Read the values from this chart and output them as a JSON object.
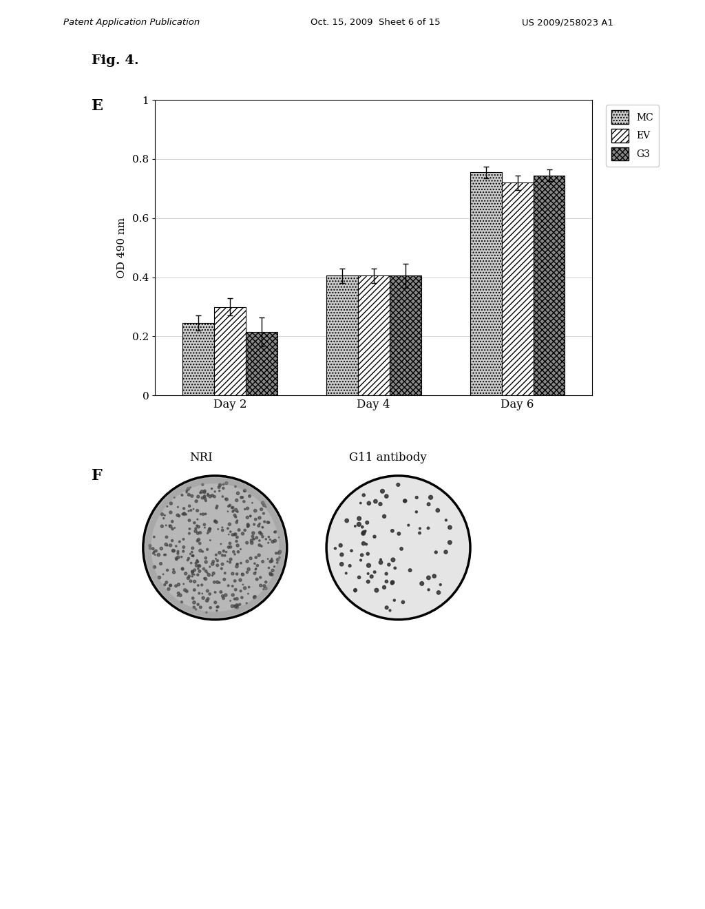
{
  "header_left": "Patent Application Publication",
  "header_mid": "Oct. 15, 2009  Sheet 6 of 15",
  "header_right": "US 2009/258023 A1",
  "fig_label": "Fig. 4.",
  "panel_E_label": "E",
  "panel_F_label": "F",
  "categories": [
    "Day 2",
    "Day 4",
    "Day 6"
  ],
  "series_keys": [
    "MC",
    "EV",
    "G3"
  ],
  "series": {
    "MC": {
      "values": [
        0.245,
        0.405,
        0.755
      ],
      "errors": [
        0.025,
        0.025,
        0.02
      ],
      "hatch": "....",
      "facecolor": "#cccccc",
      "edgecolor": "#000000",
      "label": "MC"
    },
    "EV": {
      "values": [
        0.3,
        0.405,
        0.72
      ],
      "errors": [
        0.03,
        0.025,
        0.025
      ],
      "hatch": "////",
      "facecolor": "#ffffff",
      "edgecolor": "#000000",
      "label": "EV"
    },
    "G3": {
      "values": [
        0.215,
        0.405,
        0.745
      ],
      "errors": [
        0.05,
        0.04,
        0.02
      ],
      "hatch": "xxxx",
      "facecolor": "#888888",
      "edgecolor": "#000000",
      "label": "G3"
    }
  },
  "ylabel": "OD 490 nm",
  "ylim": [
    0,
    1.0
  ],
  "yticks": [
    0,
    0.2,
    0.4,
    0.6,
    0.8,
    1
  ],
  "bar_width": 0.22,
  "nri_label": "NRI",
  "g11_label": "G11 antibody",
  "background_color": "#ffffff",
  "font_color": "#000000",
  "nri_n_dots": 400,
  "nri_dot_color": "#404040",
  "nri_bg_color": "#b8b8b8",
  "g11_n_dots": 80,
  "g11_dot_color": "#303030",
  "g11_bg_color": "#e5e5e5"
}
